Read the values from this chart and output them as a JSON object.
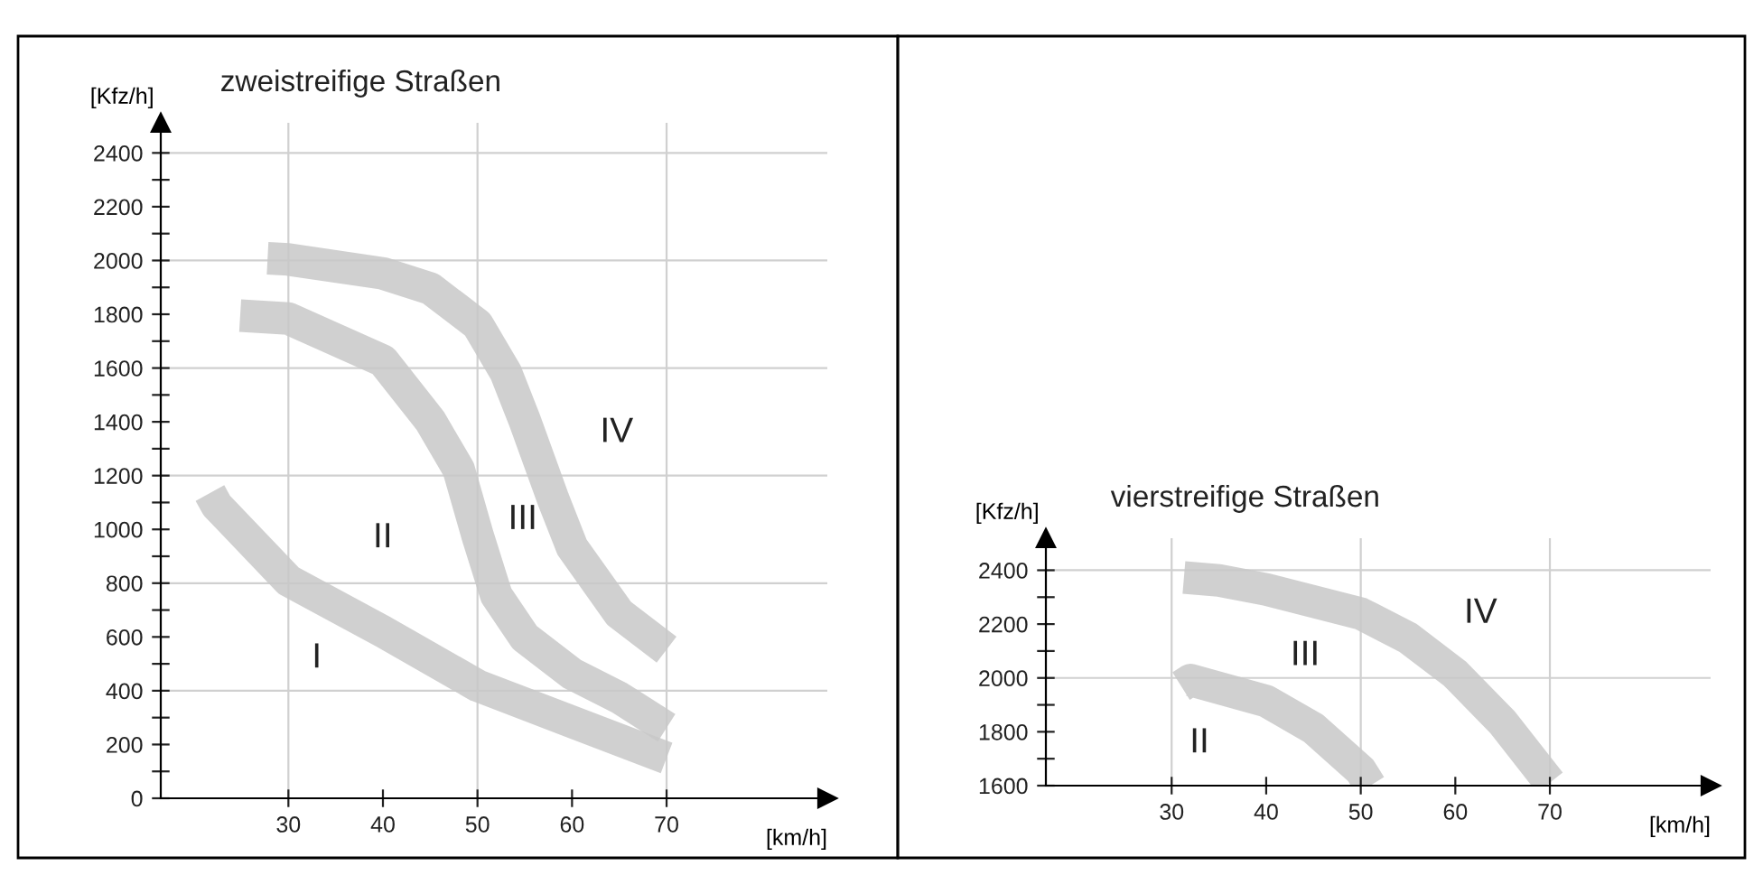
{
  "chart_data": [
    {
      "type": "line",
      "title": "zweistreifige Straßen",
      "xlabel": "[km/h]",
      "ylabel": "[Kfz/h]",
      "xlim": [
        16.5,
        87
      ],
      "ylim": [
        0,
        2512
      ],
      "xticks": [
        30,
        40,
        50,
        60,
        70
      ],
      "yticks": [
        0,
        {
          "value": 100,
          "label": null
        },
        200,
        {
          "value": 300,
          "label": null
        },
        400,
        {
          "value": 500,
          "label": null
        },
        600,
        {
          "value": 700,
          "label": null
        },
        800,
        {
          "value": 900,
          "label": null
        },
        1000,
        {
          "value": 1100,
          "label": null
        },
        1200,
        {
          "value": 1300,
          "label": null
        },
        1400,
        {
          "value": 1500,
          "label": null
        },
        1600,
        {
          "value": 1700,
          "label": null
        },
        1800,
        {
          "value": 1900,
          "label": null
        },
        2000,
        {
          "value": 2100,
          "label": null
        },
        2200,
        {
          "value": 2300,
          "label": null
        },
        2400
      ],
      "grid": false,
      "line_style": "solid",
      "marker": "none",
      "series": [
        {
          "color": "#c8c8c8",
          "x": [
            21.7,
            22.4,
            30,
            40,
            50,
            60,
            70
          ],
          "values": [
            1135,
            1090,
            810,
            620,
            419,
            284,
            150
          ]
        },
        {
          "color": "#c8c8c8",
          "x": [
            24.9,
            30,
            40,
            45,
            48,
            50,
            52,
            55,
            60,
            65,
            70
          ],
          "values": [
            1795,
            1784,
            1627,
            1404,
            1224,
            978,
            754,
            598,
            463,
            374,
            262
          ]
        },
        {
          "color": "#c8c8c8",
          "x": [
            27.8,
            30,
            40,
            45,
            50,
            53,
            55,
            58,
            60,
            65,
            70
          ],
          "values": [
            2008,
            2004,
            1952,
            1896,
            1762,
            1583,
            1404,
            1113,
            934,
            687,
            553
          ]
        }
      ],
      "ref_lines": [
        {
          "axis": "y",
          "value": 400,
          "color": "#d0d0d0"
        },
        {
          "axis": "y",
          "value": 800,
          "color": "#d0d0d0"
        },
        {
          "axis": "y",
          "value": 1200,
          "color": "#d0d0d0"
        },
        {
          "axis": "y",
          "value": 1600,
          "color": "#d0d0d0"
        },
        {
          "axis": "y",
          "value": 2000,
          "color": "#d0d0d0"
        },
        {
          "axis": "y",
          "value": 2400,
          "color": "#d0d0d0"
        },
        {
          "axis": "x",
          "value": 30,
          "color": "#d0d0d0"
        },
        {
          "axis": "x",
          "value": 50,
          "color": "#d0d0d0"
        },
        {
          "axis": "x",
          "value": 70,
          "color": "#d0d0d0"
        }
      ],
      "annotations": [
        "I",
        "II",
        "III",
        "IV"
      ]
    },
    {
      "type": "line",
      "title": "vierstreifige Straßen",
      "xlabel": "[km/h]",
      "ylabel": "[Kfz/h]",
      "xlim": [
        16.7,
        87
      ],
      "ylim": [
        1600,
        2519
      ],
      "xticks": [
        30,
        40,
        50,
        60,
        70
      ],
      "yticks": [
        1600,
        {
          "value": 1700,
          "label": null
        },
        1800,
        {
          "value": 1900,
          "label": null
        },
        2000,
        {
          "value": 2100,
          "label": null
        },
        2200,
        {
          "value": 2300,
          "label": null
        },
        2400
      ],
      "grid": false,
      "line_style": "solid",
      "marker": "none",
      "series": [
        {
          "color": "#c8c8c8",
          "x": [
            31,
            32,
            40,
            45,
            50,
            51
          ],
          "values": [
            1970,
            1992,
            1914,
            1813,
            1656,
            1600
          ]
        },
        {
          "color": "#c8c8c8",
          "x": [
            31.3,
            35,
            40,
            50,
            55,
            60,
            65,
            70
          ],
          "values": [
            2373,
            2362,
            2329,
            2239,
            2149,
            2015,
            1835,
            1611
          ]
        }
      ],
      "ref_lines": [
        {
          "axis": "y",
          "value": 2000,
          "color": "#d0d0d0"
        },
        {
          "axis": "y",
          "value": 2400,
          "color": "#d0d0d0"
        },
        {
          "axis": "x",
          "value": 30,
          "color": "#d0d0d0"
        },
        {
          "axis": "x",
          "value": 50,
          "color": "#d0d0d0"
        },
        {
          "axis": "x",
          "value": 70,
          "color": "#d0d0d0"
        }
      ],
      "annotations": [
        "II",
        "III",
        "IV"
      ]
    }
  ]
}
